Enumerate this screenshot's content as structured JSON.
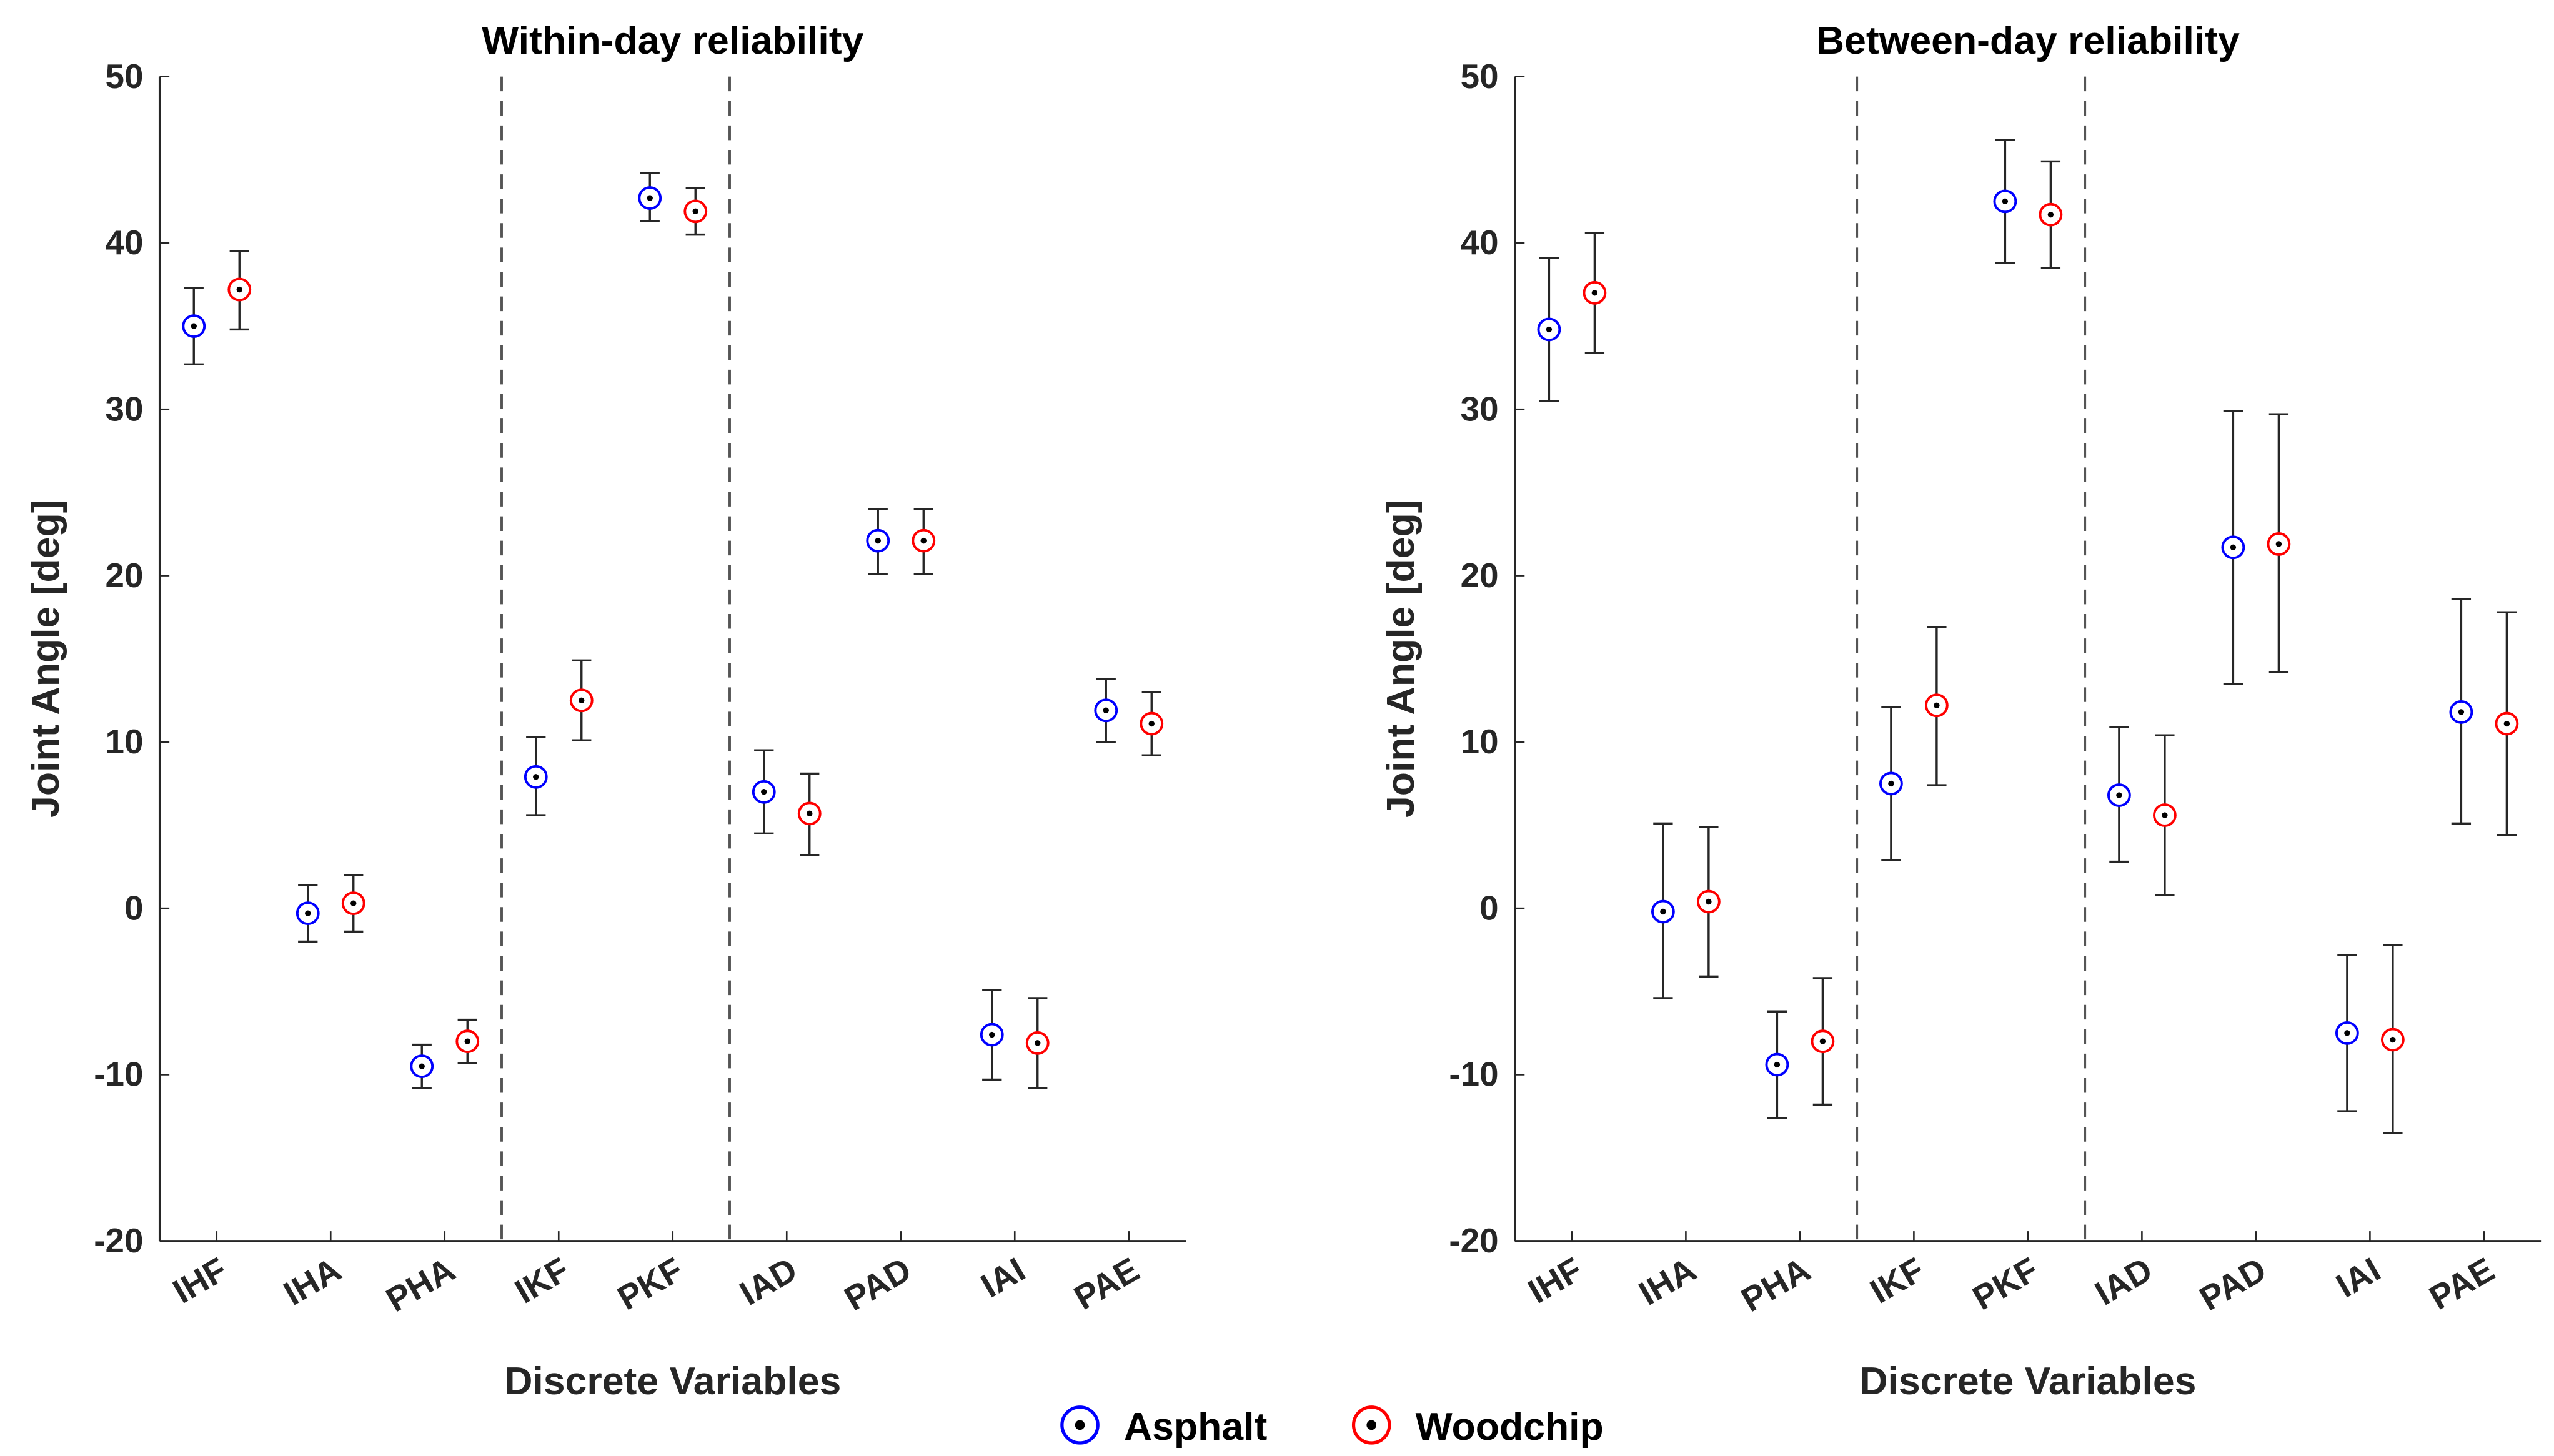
{
  "colors": {
    "asphalt": "#0000ff",
    "woodchip": "#ff0000",
    "errorbar": "#262626"
  },
  "legend": {
    "asphalt": "Asphalt",
    "woodchip": "Woodchip",
    "position": "bottom-center"
  },
  "chart_data": [
    {
      "type": "scatter",
      "title": "Within-day reliability",
      "xlabel": "Discrete Variables",
      "ylabel": "Joint Angle [deg]",
      "ylim": [
        -20,
        50
      ],
      "yticks": [
        "-20",
        "-10",
        "0",
        "10",
        "20",
        "30",
        "40",
        "50"
      ],
      "categories": [
        "IHF",
        "IHA",
        "PHA",
        "IKF",
        "PKF",
        "IAD",
        "PAD",
        "IAI",
        "PAE"
      ],
      "separators_after": [
        3,
        5
      ],
      "series": [
        {
          "name": "Asphalt",
          "values": [
            35.0,
            -0.3,
            -9.5,
            7.9,
            42.7,
            7.0,
            22.1,
            -7.6,
            11.9
          ],
          "lower": [
            32.7,
            -2.0,
            -10.8,
            5.6,
            41.3,
            4.5,
            20.1,
            -10.3,
            10.0
          ],
          "upper": [
            37.3,
            1.4,
            -8.2,
            10.3,
            44.2,
            9.5,
            24.0,
            -4.9,
            13.8
          ]
        },
        {
          "name": "Woodchip",
          "values": [
            37.2,
            0.3,
            -8.0,
            12.5,
            41.9,
            5.7,
            22.1,
            -8.1,
            11.1
          ],
          "lower": [
            34.8,
            -1.4,
            -9.3,
            10.1,
            40.5,
            3.2,
            20.1,
            -10.8,
            9.2
          ],
          "upper": [
            39.5,
            2.0,
            -6.7,
            14.9,
            43.3,
            8.1,
            24.0,
            -5.4,
            13.0
          ]
        }
      ]
    },
    {
      "type": "scatter",
      "title": "Between-day reliability",
      "xlabel": "Discrete Variables",
      "ylabel": "Joint Angle [deg]",
      "ylim": [
        -20,
        50
      ],
      "yticks": [
        "-20",
        "-10",
        "0",
        "10",
        "20",
        "30",
        "40",
        "50"
      ],
      "categories": [
        "IHF",
        "IHA",
        "PHA",
        "IKF",
        "PKF",
        "IAD",
        "PAD",
        "IAI",
        "PAE"
      ],
      "separators_after": [
        3,
        5
      ],
      "series": [
        {
          "name": "Asphalt",
          "values": [
            34.8,
            -0.2,
            -9.4,
            7.5,
            42.5,
            6.8,
            21.7,
            -7.5,
            11.8
          ],
          "lower": [
            30.5,
            -5.4,
            -12.6,
            2.9,
            38.8,
            2.8,
            13.5,
            -12.2,
            5.1
          ],
          "upper": [
            39.1,
            5.1,
            -6.2,
            12.1,
            46.2,
            10.9,
            29.9,
            -2.8,
            18.6
          ]
        },
        {
          "name": "Woodchip",
          "values": [
            37.0,
            0.4,
            -8.0,
            12.2,
            41.7,
            5.6,
            21.9,
            -7.9,
            11.1
          ],
          "lower": [
            33.4,
            -4.1,
            -11.8,
            7.4,
            38.5,
            0.8,
            14.2,
            -13.5,
            4.4
          ],
          "upper": [
            40.6,
            4.9,
            -4.2,
            16.9,
            44.9,
            10.4,
            29.7,
            -2.2,
            17.8
          ]
        }
      ]
    }
  ]
}
